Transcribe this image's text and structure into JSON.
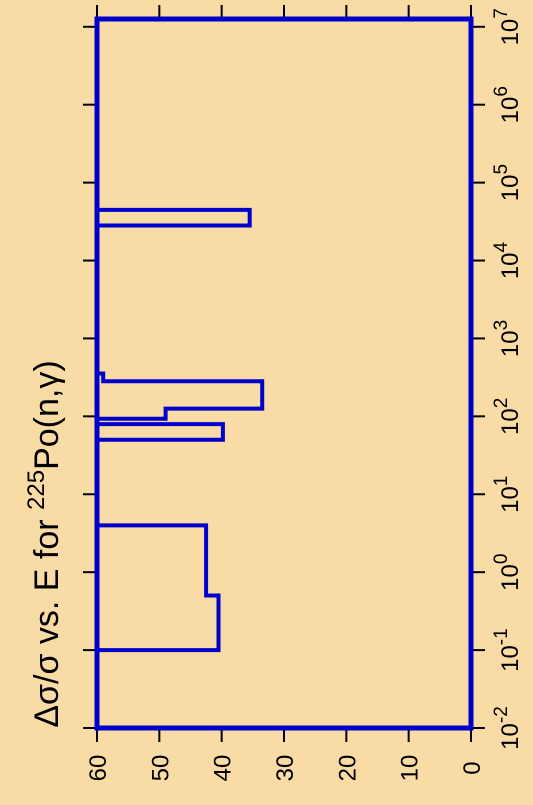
{
  "chart_data": {
    "type": "step",
    "orientation": "rotated",
    "title_parts": [
      "Δσ/σ vs. E for ",
      "225",
      "Po(n,γ)"
    ],
    "value_axis": {
      "range": [
        0,
        60
      ],
      "ticks": [
        0,
        10,
        20,
        30,
        40,
        50,
        60
      ],
      "tick_labels": [
        "0",
        "10",
        "20",
        "30",
        "40",
        "50",
        "60"
      ]
    },
    "energy_axis": {
      "scale": "log",
      "range_exponent": [
        -2,
        7.1
      ],
      "ticks_exponent": [
        -2,
        -1,
        0,
        1,
        2,
        3,
        4,
        5,
        6,
        7
      ],
      "tick_base": "10",
      "tick_exponents": [
        "-2",
        "-1",
        "0",
        "1",
        "2",
        "3",
        "4",
        "5",
        "6",
        "7"
      ]
    },
    "series": [
      {
        "color": "#0000cc",
        "points": [
          [
            -2.0,
            60
          ],
          [
            -1.0,
            60
          ],
          [
            -1.0,
            40.5
          ],
          [
            -0.3,
            40.5
          ],
          [
            -0.3,
            42.5
          ],
          [
            0.6,
            42.5
          ],
          [
            0.6,
            60
          ],
          [
            1.7,
            60
          ],
          [
            1.7,
            39.8
          ],
          [
            1.9,
            39.8
          ],
          [
            1.9,
            60
          ],
          [
            1.97,
            60
          ],
          [
            1.97,
            49
          ],
          [
            2.1,
            49
          ],
          [
            2.1,
            33.5
          ],
          [
            2.45,
            33.5
          ],
          [
            2.45,
            59
          ],
          [
            2.55,
            59
          ],
          [
            2.55,
            60
          ],
          [
            4.45,
            60
          ],
          [
            4.45,
            35.5
          ],
          [
            4.65,
            35.5
          ],
          [
            4.65,
            60
          ],
          [
            7.1,
            60
          ]
        ]
      }
    ]
  }
}
